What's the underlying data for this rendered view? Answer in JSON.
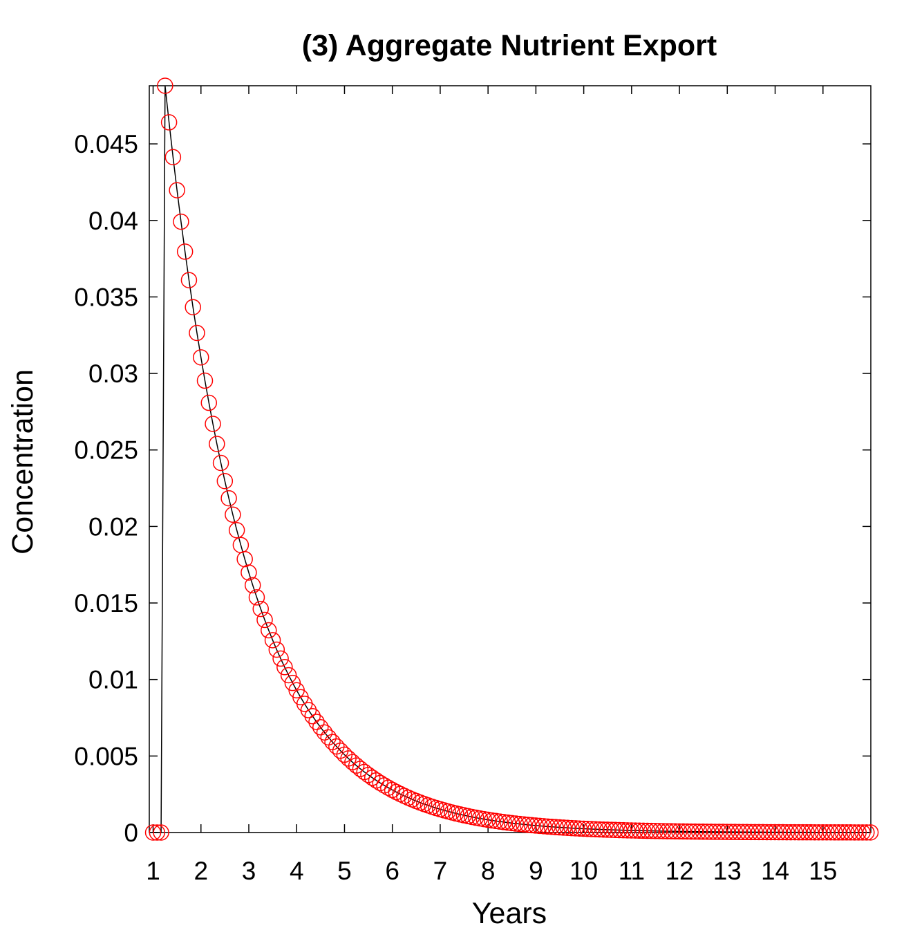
{
  "chart_data": {
    "type": "line",
    "title": "(3) Aggregate Nutrient Export",
    "xlabel": "Years",
    "ylabel": "Concentration",
    "xlim": [
      0.92,
      16.0
    ],
    "ylim": [
      0,
      0.0488
    ],
    "x_ticks": [
      1,
      2,
      3,
      4,
      5,
      6,
      7,
      8,
      9,
      10,
      11,
      12,
      13,
      14,
      15
    ],
    "x_tick_labels": [
      "1",
      "2",
      "3",
      "4",
      "5",
      "6",
      "7",
      "8",
      "9",
      "10",
      "11",
      "12",
      "13",
      "14",
      "15"
    ],
    "y_ticks": [
      0,
      0.005,
      0.01,
      0.015,
      0.02,
      0.025,
      0.03,
      0.035,
      0.04,
      0.045
    ],
    "y_tick_labels": [
      "0",
      "0.005",
      "0.01",
      "0.015",
      "0.02",
      "0.025",
      "0.03",
      "0.035",
      "0.04",
      "0.045"
    ],
    "grid": false,
    "series": [
      {
        "line_color": "#000000",
        "marker": "circle",
        "marker_color": "#ff0000",
        "x_start": 1.0,
        "x_step": 0.0833,
        "points": 181,
        "initial_zero_points": 3,
        "peak": 0.0488,
        "decay_ratio_per_step": 0.951
      }
    ]
  },
  "colors": {
    "axes": "#000000",
    "line": "#000000",
    "marker": "#ff0000",
    "background": "#ffffff"
  }
}
